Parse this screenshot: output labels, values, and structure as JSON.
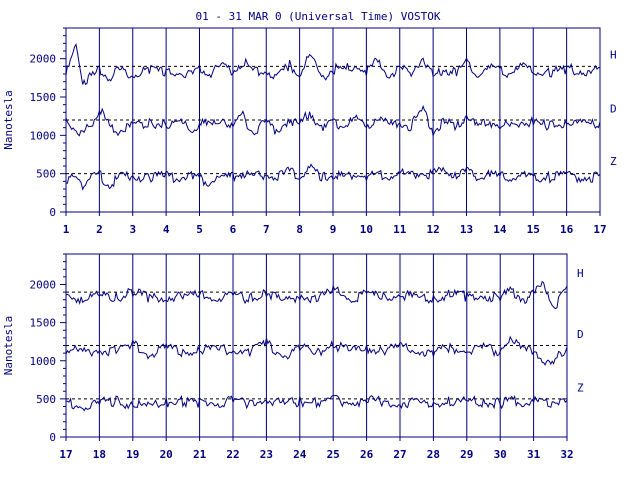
{
  "title": "01 - 31 MAR 0 (Universal Time) VOSTOK",
  "colors": {
    "ink": "#000080",
    "background": "#ffffff"
  },
  "chart_data": [
    {
      "type": "line",
      "panel": "top",
      "ylabel": "Nanotesla",
      "ylim": [
        0,
        2400
      ],
      "yticks": [
        0,
        500,
        1000,
        1500,
        2000
      ],
      "xlim": [
        1,
        17
      ],
      "xticks": [
        "1",
        "2",
        "3",
        "4",
        "5",
        "6",
        "7",
        "8",
        "9",
        "10",
        "11",
        "12",
        "13",
        "14",
        "15",
        "16",
        "17"
      ],
      "grid": true,
      "baselines": {
        "H": 1900,
        "D": 1200,
        "Z": 500
      },
      "series": [
        {
          "name": "H",
          "x": [
            1,
            1.3,
            1.5,
            1.8,
            2,
            2.3,
            2.6,
            3,
            3.5,
            4,
            4.4,
            4.8,
            5,
            5.3,
            5.7,
            6,
            6.3,
            6.6,
            7,
            7.3,
            7.7,
            8,
            8.3,
            8.7,
            9,
            9.3,
            9.7,
            10,
            10.3,
            10.7,
            11,
            11.3,
            11.7,
            12,
            12.3,
            12.7,
            13,
            13.3,
            13.7,
            14,
            14.3,
            14.7,
            15,
            15.5,
            16,
            16.5,
            17
          ],
          "values": [
            1820,
            2200,
            1750,
            1800,
            1900,
            1780,
            1880,
            1820,
            1900,
            1850,
            1870,
            1800,
            1900,
            1850,
            1920,
            1880,
            2000,
            1860,
            1900,
            1780,
            1950,
            1850,
            2050,
            1800,
            1900,
            1880,
            1960,
            1850,
            2000,
            1820,
            1900,
            1850,
            2050,
            1800,
            1900,
            1850,
            1980,
            1850,
            1900,
            1880,
            1850,
            1920,
            1880,
            1850,
            1900,
            1880,
            1880
          ]
        },
        {
          "name": "D",
          "x": [
            1,
            1.3,
            1.5,
            1.8,
            2,
            2.3,
            2.6,
            3,
            3.5,
            4,
            4.4,
            4.8,
            5,
            5.3,
            5.7,
            6,
            6.3,
            6.6,
            7,
            7.3,
            7.7,
            8,
            8.3,
            8.7,
            9,
            9.3,
            9.7,
            10,
            10.3,
            10.7,
            11,
            11.3,
            11.7,
            12,
            12.3,
            12.7,
            13,
            13.3,
            13.7,
            14,
            14.3,
            14.7,
            15,
            15.5,
            16,
            16.5,
            17
          ],
          "values": [
            1250,
            1100,
            1050,
            1200,
            1380,
            1150,
            1100,
            1150,
            1200,
            1180,
            1200,
            1100,
            1200,
            1150,
            1250,
            1150,
            1280,
            1080,
            1200,
            1100,
            1250,
            1150,
            1350,
            1100,
            1200,
            1150,
            1250,
            1100,
            1280,
            1150,
            1200,
            1150,
            1350,
            1100,
            1200,
            1150,
            1300,
            1150,
            1200,
            1180,
            1150,
            1220,
            1200,
            1150,
            1200,
            1180,
            1180
          ]
        },
        {
          "name": "Z",
          "x": [
            1,
            1.3,
            1.5,
            1.8,
            2,
            2.3,
            2.6,
            3,
            3.5,
            4,
            4.4,
            4.8,
            5,
            5.3,
            5.7,
            6,
            6.3,
            6.6,
            7,
            7.3,
            7.7,
            8,
            8.3,
            8.7,
            9,
            9.3,
            9.7,
            10,
            10.3,
            10.7,
            11,
            11.3,
            11.7,
            12,
            12.3,
            12.7,
            13,
            13.3,
            13.7,
            14,
            14.3,
            14.7,
            15,
            15.5,
            16,
            16.5,
            17
          ],
          "values": [
            480,
            450,
            400,
            500,
            520,
            380,
            480,
            500,
            490,
            500,
            480,
            520,
            470,
            420,
            500,
            480,
            550,
            500,
            520,
            480,
            560,
            520,
            600,
            500,
            520,
            490,
            530,
            500,
            520,
            490,
            540,
            500,
            560,
            520,
            600,
            520,
            550,
            500,
            520,
            490,
            480,
            500,
            480,
            490,
            500,
            490,
            490
          ]
        }
      ]
    },
    {
      "type": "line",
      "panel": "bottom",
      "ylabel": "Nanotesla",
      "ylim": [
        0,
        2400
      ],
      "yticks": [
        0,
        500,
        1000,
        1500,
        2000
      ],
      "xlim": [
        17,
        32
      ],
      "xticks": [
        "17",
        "18",
        "19",
        "20",
        "21",
        "22",
        "23",
        "24",
        "25",
        "26",
        "27",
        "28",
        "29",
        "30",
        "31",
        "32"
      ],
      "grid": true,
      "baselines": {
        "H": 1900,
        "D": 1200,
        "Z": 500
      },
      "series": [
        {
          "name": "H",
          "x": [
            17,
            17.5,
            18,
            18.5,
            19,
            19.5,
            20,
            20.5,
            21,
            21.5,
            22,
            22.5,
            23,
            23.5,
            24,
            24.5,
            25,
            25.5,
            26,
            26.5,
            27,
            27.5,
            28,
            28.5,
            29,
            29.5,
            30,
            30.3,
            30.7,
            31,
            31.3,
            31.6,
            31.8,
            32
          ],
          "values": [
            1880,
            1850,
            1880,
            1860,
            1950,
            1850,
            1880,
            1870,
            1900,
            1860,
            1880,
            1850,
            1950,
            1800,
            1900,
            1850,
            1960,
            1860,
            1900,
            1880,
            1900,
            1860,
            1850,
            1900,
            1880,
            1900,
            1850,
            1950,
            1850,
            1900,
            2050,
            1750,
            1850,
            1980
          ]
        },
        {
          "name": "D",
          "x": [
            17,
            17.5,
            18,
            18.5,
            19,
            19.5,
            20,
            20.5,
            21,
            21.5,
            22,
            22.5,
            23,
            23.5,
            24,
            24.5,
            25,
            25.5,
            26,
            26.5,
            27,
            27.5,
            28,
            28.5,
            29,
            29.5,
            30,
            30.3,
            30.7,
            31,
            31.3,
            31.6,
            31.8,
            32
          ],
          "values": [
            1180,
            1150,
            1180,
            1160,
            1250,
            1120,
            1200,
            1150,
            1200,
            1160,
            1200,
            1150,
            1270,
            1100,
            1200,
            1150,
            1250,
            1150,
            1200,
            1170,
            1210,
            1160,
            1150,
            1200,
            1180,
            1200,
            1150,
            1350,
            1150,
            1200,
            1050,
            950,
            1150,
            1180
          ]
        },
        {
          "name": "Z",
          "x": [
            17,
            17.5,
            18,
            18.5,
            19,
            19.5,
            20,
            20.5,
            21,
            21.5,
            22,
            22.5,
            23,
            23.5,
            24,
            24.5,
            25,
            25.5,
            26,
            26.5,
            27,
            27.5,
            28,
            28.5,
            29,
            29.5,
            30,
            30.3,
            30.7,
            31,
            31.3,
            31.6,
            31.8,
            32
          ],
          "values": [
            500,
            420,
            490,
            500,
            460,
            420,
            490,
            500,
            480,
            490,
            500,
            480,
            520,
            460,
            500,
            480,
            520,
            490,
            510,
            500,
            480,
            490,
            460,
            500,
            490,
            500,
            480,
            510,
            490,
            500,
            480,
            500,
            490,
            480
          ]
        }
      ]
    }
  ]
}
